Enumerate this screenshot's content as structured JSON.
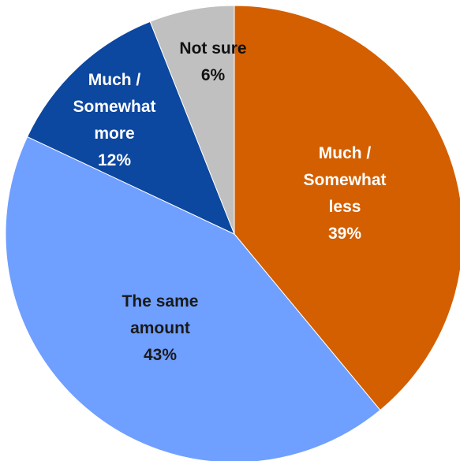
{
  "chart_data": {
    "type": "pie",
    "start_angle_deg": 0,
    "direction": "clockwise",
    "slices": [
      {
        "label_lines": [
          "Much /",
          "Somewhat",
          "less"
        ],
        "value": 39,
        "value_label": "39%",
        "color": "#D35F00",
        "label_color": "#ffffff"
      },
      {
        "label_lines": [
          "The same",
          "amount"
        ],
        "value": 43,
        "value_label": "43%",
        "color": "#6F9FFF",
        "label_color": "#1a1a1a"
      },
      {
        "label_lines": [
          "Much /",
          "Somewhat",
          "more"
        ],
        "value": 12,
        "value_label": "12%",
        "color": "#0C47A0",
        "label_color": "#ffffff"
      },
      {
        "label_lines": [
          "Not sure"
        ],
        "value": 6,
        "value_label": "6%",
        "color": "#C0C0C0",
        "label_color": "#111111"
      }
    ]
  }
}
